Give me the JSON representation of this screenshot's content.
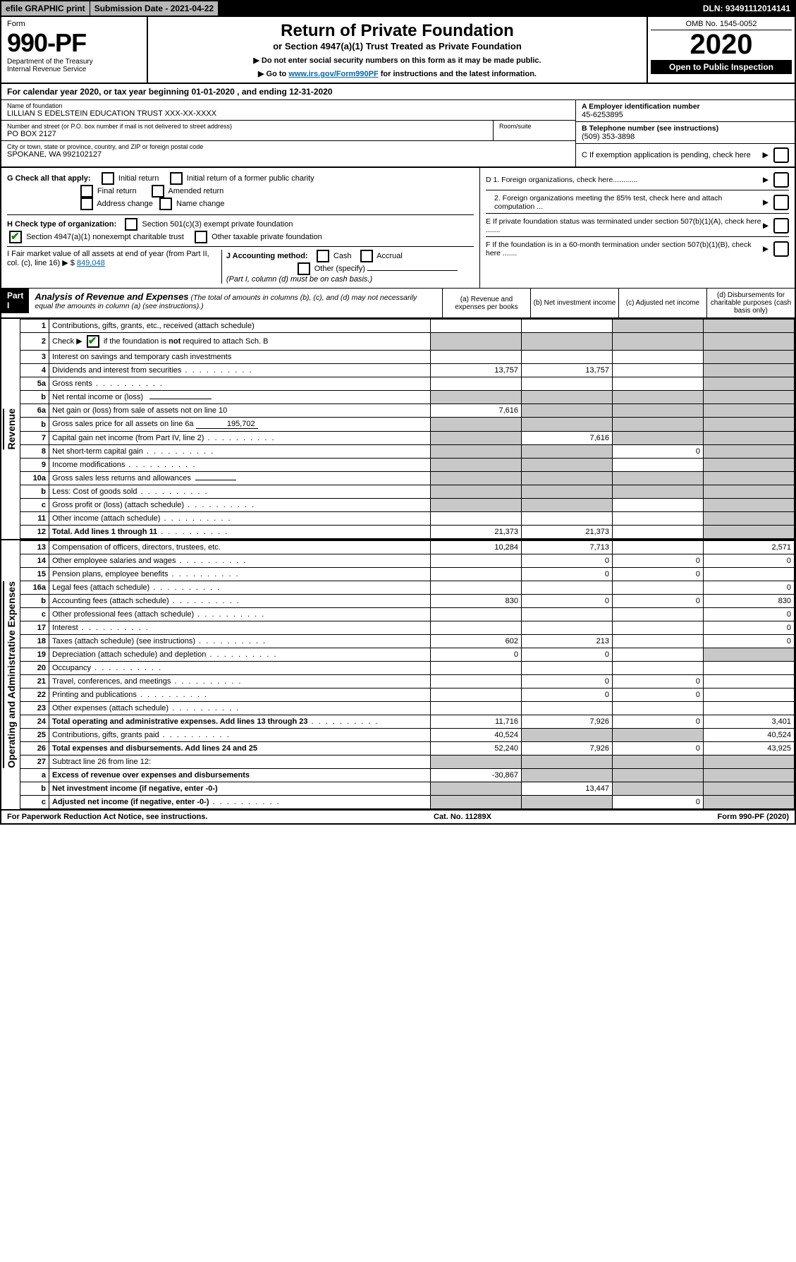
{
  "topbar": {
    "efile": "efile GRAPHIC print",
    "submission": "Submission Date - 2021-04-22",
    "dln": "DLN: 93491112014141"
  },
  "header": {
    "form_label": "Form",
    "form_no": "990-PF",
    "dept1": "Department of the Treasury",
    "dept2": "Internal Revenue Service",
    "title": "Return of Private Foundation",
    "subtitle": "or Section 4947(a)(1) Trust Treated as Private Foundation",
    "note1": "▶ Do not enter social security numbers on this form as it may be made public.",
    "note2_pre": "▶ Go to ",
    "note2_link": "www.irs.gov/Form990PF",
    "note2_post": " for instructions and the latest information.",
    "omb": "OMB No. 1545-0052",
    "year": "2020",
    "inspection": "Open to Public Inspection"
  },
  "calendar": "For calendar year 2020, or tax year beginning 01-01-2020                               , and ending 12-31-2020",
  "entity": {
    "name_lbl": "Name of foundation",
    "name": "LILLIAN S EDELSTEIN EDUCATION TRUST XXX-XX-XXXX",
    "addr_lbl": "Number and street (or P.O. box number if mail is not delivered to street address)",
    "room_lbl": "Room/suite",
    "addr": "PO BOX 2127",
    "city_lbl": "City or town, state or province, country, and ZIP or foreign postal code",
    "city": "SPOKANE, WA  992102127",
    "ein_lbl": "A Employer identification number",
    "ein": "45-6253895",
    "phone_lbl": "B Telephone number (see instructions)",
    "phone": "(509) 353-3898",
    "pending_lbl": "C If exemption application is pending, check here"
  },
  "checks": {
    "g_label": "G Check all that apply:",
    "g": [
      "Initial return",
      "Initial return of a former public charity",
      "Final return",
      "Amended return",
      "Address change",
      "Name change"
    ],
    "h_label": "H Check type of organization:",
    "h1": "Section 501(c)(3) exempt private foundation",
    "h2": "Section 4947(a)(1) nonexempt charitable trust",
    "h3": "Other taxable private foundation",
    "i_label": "I Fair market value of all assets at end of year (from Part II, col. (c), line 16) ▶ $",
    "i_val": "849,048",
    "j_label": "J Accounting method:",
    "j1": "Cash",
    "j2": "Accrual",
    "j3": "Other (specify)",
    "j_note": "(Part I, column (d) must be on cash basis.)",
    "d1": "D 1. Foreign organizations, check here............",
    "d2": "2. Foreign organizations meeting the 85% test, check here and attach computation ...",
    "e": "E  If private foundation status was terminated under section 507(b)(1)(A), check here .......",
    "f": "F  If the foundation is in a 60-month termination under section 507(b)(1)(B), check here ......."
  },
  "part1": {
    "label": "Part I",
    "title": "Analysis of Revenue and Expenses",
    "note": " (The total of amounts in columns (b), (c), and (d) may not necessarily equal the amounts in column (a) (see instructions).)",
    "col_a": "(a)   Revenue and expenses per books",
    "col_b": "(b)  Net investment income",
    "col_c": "(c)  Adjusted net income",
    "col_d": "(d)  Disbursements for charitable purposes (cash basis only)"
  },
  "sections": {
    "revenue": "Revenue",
    "expenses": "Operating and Administrative Expenses"
  },
  "rows": [
    {
      "n": "1",
      "d": "Contributions, gifts, grants, etc., received (attach schedule)",
      "a": "",
      "b": "",
      "c": "s",
      "dcol": "s"
    },
    {
      "n": "2",
      "d_html": "Check ▶ <span class='chk on'></span> if the foundation is <b>not</b> required to attach Sch. B",
      "a": "s",
      "b": "s",
      "c": "s",
      "dcol": "s",
      "dots": true
    },
    {
      "n": "3",
      "d": "Interest on savings and temporary cash investments",
      "a": "",
      "b": "",
      "c": "",
      "dcol": "s"
    },
    {
      "n": "4",
      "d": "Dividends and interest from securities",
      "a": "13,757",
      "b": "13,757",
      "c": "",
      "dcol": "s",
      "dots": true
    },
    {
      "n": "5a",
      "d": "Gross rents",
      "a": "",
      "b": "",
      "c": "",
      "dcol": "s",
      "dots": true
    },
    {
      "n": "b",
      "d_html": "Net rental income or (loss) &nbsp;&nbsp;<span class='inline-input-line'></span>",
      "a": "s",
      "b": "s",
      "c": "s",
      "dcol": "s"
    },
    {
      "n": "6a",
      "d": "Net gain or (loss) from sale of assets not on line 10",
      "a": "7,616",
      "b": "s",
      "c": "s",
      "dcol": "s"
    },
    {
      "n": "b",
      "d_html": "Gross sales price for all assets on line 6a <span class='inline-input-line'>195,702</span>",
      "a": "s",
      "b": "s",
      "c": "s",
      "dcol": "s"
    },
    {
      "n": "7",
      "d": "Capital gain net income (from Part IV, line 2)",
      "a": "s",
      "b": "7,616",
      "c": "s",
      "dcol": "s",
      "dots": true
    },
    {
      "n": "8",
      "d": "Net short-term capital gain",
      "a": "s",
      "b": "s",
      "c": "0",
      "dcol": "s",
      "dots": true
    },
    {
      "n": "9",
      "d": "Income modifications",
      "a": "s",
      "b": "s",
      "c": "",
      "dcol": "s",
      "dots": true
    },
    {
      "n": "10a",
      "d_html": "Gross sales less returns and allowances &nbsp;<span class='inline-input-line' style='min-width:50px'></span>",
      "a": "s",
      "b": "s",
      "c": "s",
      "dcol": "s"
    },
    {
      "n": "b",
      "d": "Less: Cost of goods sold",
      "a": "s",
      "b": "s",
      "c": "s",
      "dcol": "s",
      "dots": true
    },
    {
      "n": "c",
      "d": "Gross profit or (loss) (attach schedule)",
      "a": "s",
      "b": "s",
      "c": "",
      "dcol": "s",
      "dots": true
    },
    {
      "n": "11",
      "d": "Other income (attach schedule)",
      "a": "",
      "b": "",
      "c": "",
      "dcol": "s",
      "dots": true
    },
    {
      "n": "12",
      "d": "Total. Add lines 1 through 11",
      "bold": true,
      "a": "21,373",
      "b": "21,373",
      "c": "",
      "dcol": "s",
      "dots": true
    }
  ],
  "exp_rows": [
    {
      "n": "13",
      "d": "Compensation of officers, directors, trustees, etc.",
      "a": "10,284",
      "b": "7,713",
      "c": "",
      "dcol": "2,571"
    },
    {
      "n": "14",
      "d": "Other employee salaries and wages",
      "a": "",
      "b": "0",
      "c": "0",
      "dcol": "0",
      "dots": true
    },
    {
      "n": "15",
      "d": "Pension plans, employee benefits",
      "a": "",
      "b": "0",
      "c": "0",
      "dcol": "",
      "dots": true
    },
    {
      "n": "16a",
      "d": "Legal fees (attach schedule)",
      "a": "",
      "b": "",
      "c": "",
      "dcol": "0",
      "dots": true
    },
    {
      "n": "b",
      "d": "Accounting fees (attach schedule)",
      "a": "830",
      "b": "0",
      "c": "0",
      "dcol": "830",
      "dots": true
    },
    {
      "n": "c",
      "d": "Other professional fees (attach schedule)",
      "a": "",
      "b": "",
      "c": "",
      "dcol": "0",
      "dots": true
    },
    {
      "n": "17",
      "d": "Interest",
      "a": "",
      "b": "",
      "c": "",
      "dcol": "0",
      "dots": true
    },
    {
      "n": "18",
      "d": "Taxes (attach schedule) (see instructions)",
      "a": "602",
      "b": "213",
      "c": "",
      "dcol": "0",
      "dots": true
    },
    {
      "n": "19",
      "d": "Depreciation (attach schedule) and depletion",
      "a": "0",
      "b": "0",
      "c": "",
      "dcol": "s",
      "dots": true
    },
    {
      "n": "20",
      "d": "Occupancy",
      "a": "",
      "b": "",
      "c": "",
      "dcol": "",
      "dots": true
    },
    {
      "n": "21",
      "d": "Travel, conferences, and meetings",
      "a": "",
      "b": "0",
      "c": "0",
      "dcol": "",
      "dots": true
    },
    {
      "n": "22",
      "d": "Printing and publications",
      "a": "",
      "b": "0",
      "c": "0",
      "dcol": "",
      "dots": true
    },
    {
      "n": "23",
      "d": "Other expenses (attach schedule)",
      "a": "",
      "b": "",
      "c": "",
      "dcol": "",
      "dots": true
    },
    {
      "n": "24",
      "d": "Total operating and administrative expenses. Add lines 13 through 23",
      "bold": true,
      "a": "11,716",
      "b": "7,926",
      "c": "0",
      "dcol": "3,401",
      "dots": true
    },
    {
      "n": "25",
      "d": "Contributions, gifts, grants paid",
      "a": "40,524",
      "b": "s",
      "c": "s",
      "dcol": "40,524",
      "dots": true
    },
    {
      "n": "26",
      "d": "Total expenses and disbursements. Add lines 24 and 25",
      "bold": true,
      "a": "52,240",
      "b": "7,926",
      "c": "0",
      "dcol": "43,925"
    },
    {
      "n": "27",
      "d": "Subtract line 26 from line 12:",
      "a": "s",
      "b": "s",
      "c": "s",
      "dcol": "s"
    },
    {
      "n": "a",
      "d": "Excess of revenue over expenses and disbursements",
      "bold": true,
      "a": "-30,867",
      "b": "s",
      "c": "s",
      "dcol": "s"
    },
    {
      "n": "b",
      "d": "Net investment income (if negative, enter -0-)",
      "bold": true,
      "a": "s",
      "b": "13,447",
      "c": "s",
      "dcol": "s"
    },
    {
      "n": "c",
      "d": "Adjusted net income (if negative, enter -0-)",
      "bold": true,
      "a": "s",
      "b": "s",
      "c": "0",
      "dcol": "s",
      "dots": true
    }
  ],
  "footer": {
    "left": "For Paperwork Reduction Act Notice, see instructions.",
    "mid": "Cat. No. 11289X",
    "right": "Form 990-PF (2020)"
  }
}
